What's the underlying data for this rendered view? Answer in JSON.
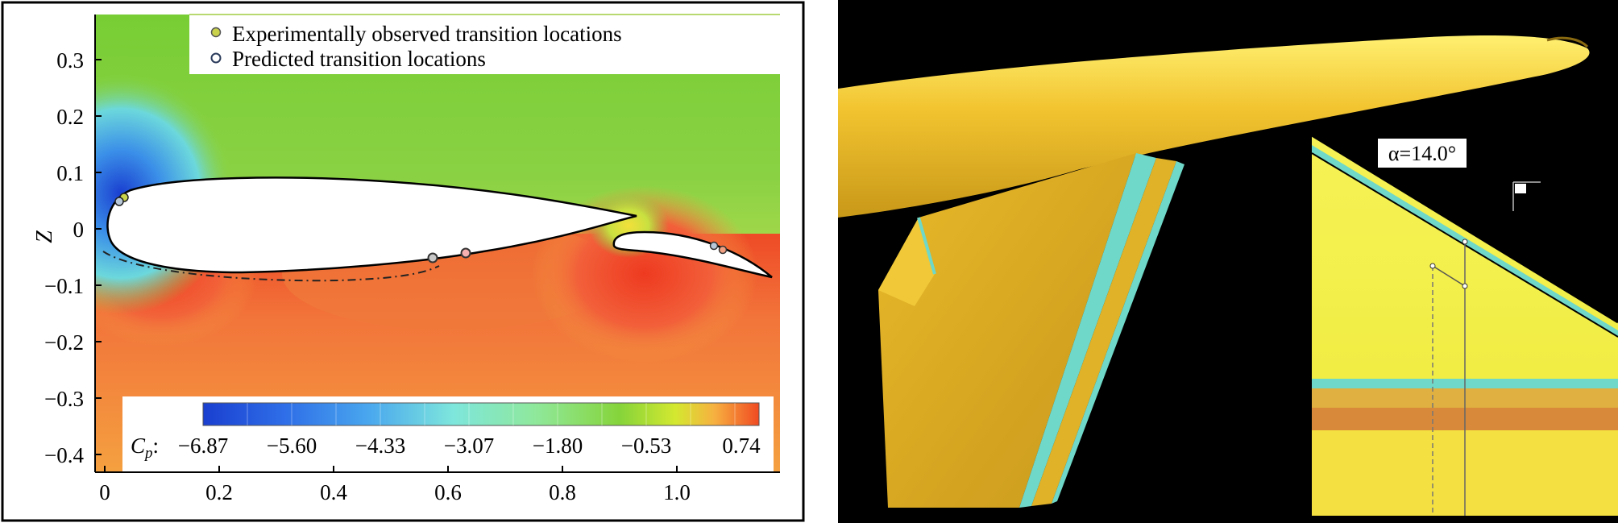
{
  "figure_left": {
    "legend": {
      "items": [
        {
          "label": "Experimentally observed transition locations",
          "marker_color": "#c9d24a"
        },
        {
          "label": "Predicted transition locations",
          "marker_color": "#2a3a5a"
        }
      ]
    },
    "axes": {
      "ylabel": "Z",
      "xticks": [
        "0",
        "0.2",
        "0.4",
        "0.6",
        "0.8",
        "1.0"
      ],
      "yticks": [
        "0.3",
        "0.2",
        "0.1",
        "0",
        "−0.1",
        "−0.2",
        "−0.3",
        "−0.4"
      ]
    },
    "colorbar": {
      "label_symbol": "C",
      "label_subscript": "p",
      "label_suffix": ":",
      "ticks": [
        "−6.87",
        "−5.60",
        "−4.33",
        "−3.07",
        "−1.80",
        "−0.53",
        "0.74"
      ],
      "min": -6.87,
      "max": 0.74,
      "colors": [
        "#1a3fd0",
        "#2f7ee8",
        "#56b8ee",
        "#7ee6dc",
        "#8fe89a",
        "#8cd63a",
        "#d4e830",
        "#f7b040",
        "#f04a22"
      ]
    },
    "field_colors": {
      "upper": "#7fcf3a",
      "lower": "#f08a3a",
      "hot": "#ee4a26"
    }
  },
  "figure_right": {
    "inset": {
      "alpha_label": "α=14.0°"
    },
    "colors": {
      "background": "#000000",
      "body": "#f2c430",
      "highlight": "#ffe65a",
      "edge": "#6fd8c8",
      "inset_bg": "#f4f04a"
    }
  }
}
